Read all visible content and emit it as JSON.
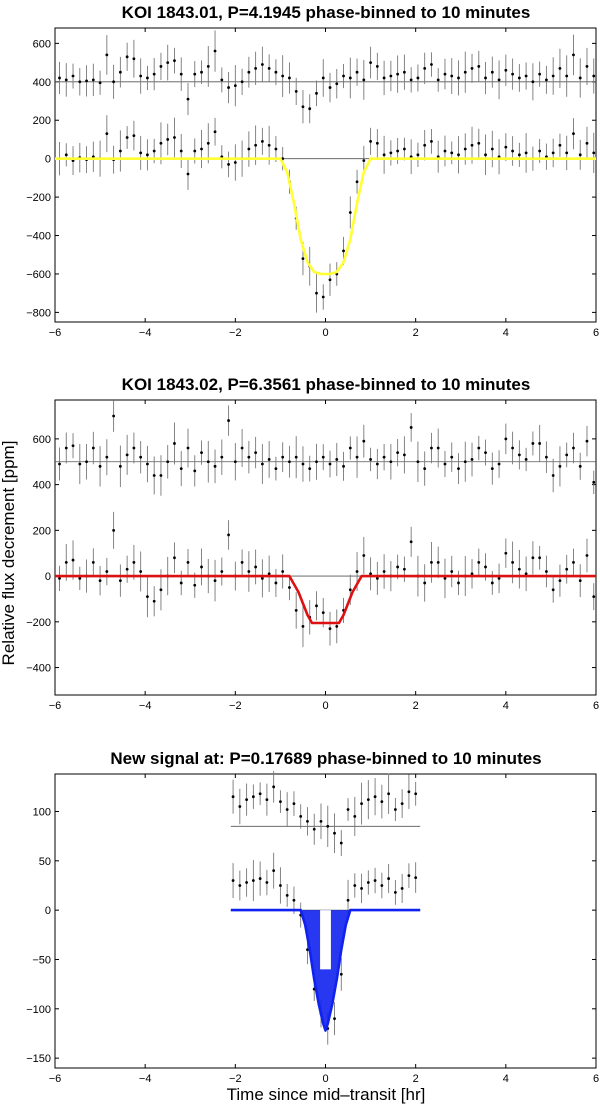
{
  "chart_data": [
    {
      "type": "scatter",
      "title": "KOI 1843.01, P=4.1945 phase-binned to 10 minutes",
      "xlabel": "",
      "ylabel": "",
      "xlim": [
        -6,
        6
      ],
      "ylim": [
        -850,
        680
      ],
      "xticks": [
        -6,
        -4,
        -2,
        0,
        2,
        4,
        6
      ],
      "yticks": [
        -800,
        -600,
        -400,
        -200,
        0,
        200,
        400,
        600
      ],
      "reference_lines": [
        0,
        400
      ],
      "model_color": "#ffff33",
      "model": {
        "x": [
          -6,
          -1.0,
          -0.85,
          -0.7,
          -0.55,
          -0.4,
          -0.25,
          -0.1,
          0,
          0.1,
          0.25,
          0.4,
          0.55,
          0.7,
          0.85,
          1.0,
          6
        ],
        "y": [
          0,
          0,
          -70,
          -230,
          -420,
          -540,
          -590,
          -600,
          -600,
          -600,
          -590,
          -540,
          -420,
          -230,
          -70,
          0,
          0
        ]
      },
      "series": [
        {
          "x": [
            -5.9,
            -5.75,
            -5.6,
            -5.45,
            -5.3,
            -5.15,
            -5.0,
            -4.85,
            -4.7,
            -4.55,
            -4.4,
            -4.25,
            -4.1,
            -3.95,
            -3.8,
            -3.65,
            -3.5,
            -3.35,
            -3.2,
            -3.05,
            -2.9,
            -2.75,
            -2.6,
            -2.45,
            -2.3,
            -2.15,
            -2.0,
            -1.85,
            -1.7,
            -1.55,
            -1.4,
            -1.25,
            -1.1,
            -0.95,
            -0.8,
            -0.65,
            -0.5,
            -0.35,
            -0.2,
            -0.05,
            0.1,
            0.25,
            0.4,
            0.55,
            0.7,
            0.85,
            1.0,
            1.15,
            1.3,
            1.45,
            1.6,
            1.75,
            1.9,
            2.05,
            2.2,
            2.35,
            2.5,
            2.65,
            2.8,
            2.95,
            3.1,
            3.25,
            3.4,
            3.55,
            3.7,
            3.85,
            4.0,
            4.15,
            4.3,
            4.45,
            4.6,
            4.75,
            4.9,
            5.05,
            5.2,
            5.35,
            5.5,
            5.65,
            5.8,
            5.95
          ],
          "y": [
            420,
            410,
            430,
            400,
            405,
            410,
            395,
            540,
            400,
            450,
            530,
            520,
            430,
            420,
            440,
            480,
            500,
            510,
            440,
            310,
            440,
            450,
            480,
            560,
            410,
            370,
            380,
            400,
            450,
            470,
            490,
            470,
            450,
            430,
            420,
            350,
            270,
            260,
            340,
            420,
            370,
            390,
            430,
            420,
            450,
            410,
            500,
            480,
            420,
            430,
            440,
            450,
            410,
            420,
            470,
            490,
            410,
            440,
            430,
            420,
            450,
            470,
            480,
            420,
            450,
            410,
            460,
            440,
            420,
            430,
            400,
            440,
            410,
            430,
            470,
            430,
            540,
            420,
            480,
            430
          ]
        },
        {
          "x": [
            -5.9,
            -5.75,
            -5.6,
            -5.45,
            -5.3,
            -5.15,
            -5.0,
            -4.85,
            -4.7,
            -4.55,
            -4.4,
            -4.25,
            -4.1,
            -3.95,
            -3.8,
            -3.65,
            -3.5,
            -3.35,
            -3.2,
            -3.05,
            -2.9,
            -2.75,
            -2.6,
            -2.45,
            -2.3,
            -2.15,
            -2.0,
            -1.85,
            -1.7,
            -1.55,
            -1.4,
            -1.25,
            -1.1,
            -0.95,
            -0.8,
            -0.65,
            -0.5,
            -0.35,
            -0.2,
            -0.05,
            0.1,
            0.25,
            0.4,
            0.55,
            0.7,
            0.85,
            1.0,
            1.15,
            1.3,
            1.45,
            1.6,
            1.75,
            1.9,
            2.05,
            2.2,
            2.35,
            2.5,
            2.65,
            2.8,
            2.95,
            3.1,
            3.25,
            3.4,
            3.55,
            3.7,
            3.85,
            4.0,
            4.15,
            4.3,
            4.45,
            4.6,
            4.75,
            4.9,
            5.05,
            5.2,
            5.35,
            5.5,
            5.65,
            5.8,
            5.95
          ],
          "y": [
            0,
            20,
            -10,
            5,
            -5,
            10,
            0,
            130,
            -5,
            40,
            110,
            120,
            30,
            20,
            40,
            80,
            100,
            110,
            40,
            -80,
            40,
            50,
            80,
            140,
            10,
            -30,
            -20,
            0,
            50,
            70,
            90,
            70,
            50,
            0,
            -120,
            -310,
            -520,
            -560,
            -700,
            -720,
            -630,
            -600,
            -480,
            -280,
            -120,
            -10,
            90,
            80,
            20,
            30,
            40,
            50,
            10,
            20,
            70,
            90,
            10,
            40,
            30,
            20,
            50,
            70,
            80,
            20,
            50,
            10,
            60,
            40,
            20,
            30,
            0,
            40,
            10,
            30,
            70,
            30,
            130,
            20,
            80,
            30
          ]
        }
      ]
    },
    {
      "type": "scatter",
      "title": "KOI 1843.02, P=6.3561 phase-binned to 10 minutes",
      "xlabel": "",
      "ylabel": "Relative flux decrement [ppm]",
      "xlim": [
        -6,
        6
      ],
      "ylim": [
        -520,
        770
      ],
      "xticks": [
        -6,
        -4,
        -2,
        0,
        2,
        4,
        6
      ],
      "yticks": [
        -400,
        -200,
        0,
        200,
        400,
        600
      ],
      "reference_lines": [
        0,
        500
      ],
      "model_color": "#dd1111",
      "model": {
        "x": [
          -6,
          -0.8,
          -0.6,
          -0.4,
          -0.3,
          0.3,
          0.4,
          0.6,
          0.8,
          6
        ],
        "y": [
          0,
          0,
          -70,
          -170,
          -205,
          -205,
          -170,
          -70,
          0,
          0
        ]
      },
      "series": [
        {
          "x": [
            -5.9,
            -5.75,
            -5.6,
            -5.45,
            -5.3,
            -5.15,
            -5.0,
            -4.85,
            -4.7,
            -4.55,
            -4.4,
            -4.25,
            -4.1,
            -3.95,
            -3.8,
            -3.65,
            -3.5,
            -3.35,
            -3.2,
            -3.05,
            -2.9,
            -2.75,
            -2.6,
            -2.45,
            -2.3,
            -2.15,
            -2.0,
            -1.85,
            -1.7,
            -1.55,
            -1.4,
            -1.25,
            -1.1,
            -0.95,
            -0.8,
            -0.65,
            -0.5,
            -0.35,
            -0.2,
            -0.05,
            0.1,
            0.25,
            0.4,
            0.55,
            0.7,
            0.85,
            1.0,
            1.15,
            1.3,
            1.45,
            1.6,
            1.75,
            1.9,
            2.05,
            2.2,
            2.35,
            2.5,
            2.65,
            2.8,
            2.95,
            3.1,
            3.25,
            3.4,
            3.55,
            3.7,
            3.85,
            4.0,
            4.15,
            4.3,
            4.45,
            4.6,
            4.75,
            4.9,
            5.05,
            5.2,
            5.35,
            5.5,
            5.65,
            5.8,
            5.95
          ],
          "y": [
            490,
            560,
            570,
            490,
            500,
            560,
            480,
            520,
            700,
            480,
            530,
            560,
            520,
            490,
            440,
            440,
            500,
            580,
            470,
            560,
            460,
            540,
            500,
            480,
            520,
            680,
            500,
            560,
            520,
            540,
            490,
            510,
            470,
            520,
            500,
            520,
            490,
            470,
            500,
            520,
            490,
            510,
            480,
            560,
            520,
            590,
            510,
            490,
            520,
            500,
            540,
            530,
            650,
            500,
            470,
            560,
            560,
            490,
            520,
            470,
            500,
            510,
            560,
            540,
            470,
            490,
            600,
            560,
            530,
            510,
            580,
            580,
            520,
            440,
            480,
            530,
            560,
            480,
            590,
            410
          ]
        },
        {
          "x": [
            -5.9,
            -5.75,
            -5.6,
            -5.45,
            -5.3,
            -5.15,
            -5.0,
            -4.85,
            -4.7,
            -4.55,
            -4.4,
            -4.25,
            -4.1,
            -3.95,
            -3.8,
            -3.65,
            -3.5,
            -3.35,
            -3.2,
            -3.05,
            -2.9,
            -2.75,
            -2.6,
            -2.45,
            -2.3,
            -2.15,
            -2.0,
            -1.85,
            -1.7,
            -1.55,
            -1.4,
            -1.25,
            -1.1,
            -0.95,
            -0.8,
            -0.65,
            -0.5,
            -0.35,
            -0.2,
            -0.05,
            0.1,
            0.25,
            0.4,
            0.55,
            0.7,
            0.85,
            1.0,
            1.15,
            1.3,
            1.45,
            1.6,
            1.75,
            1.9,
            2.05,
            2.2,
            2.35,
            2.5,
            2.65,
            2.8,
            2.95,
            3.1,
            3.25,
            3.4,
            3.55,
            3.7,
            3.85,
            4.0,
            4.15,
            4.3,
            4.45,
            4.6,
            4.75,
            4.9,
            5.05,
            5.2,
            5.35,
            5.5,
            5.65,
            5.8,
            5.95
          ],
          "y": [
            -10,
            60,
            70,
            -10,
            0,
            60,
            -20,
            20,
            200,
            -20,
            30,
            60,
            20,
            -90,
            -110,
            -60,
            0,
            80,
            -30,
            60,
            -40,
            40,
            0,
            -20,
            20,
            180,
            0,
            60,
            20,
            40,
            -10,
            10,
            -30,
            20,
            -50,
            -150,
            -220,
            -180,
            -130,
            -160,
            -230,
            -220,
            -150,
            -60,
            20,
            90,
            10,
            -10,
            20,
            0,
            40,
            30,
            150,
            0,
            -30,
            60,
            60,
            -10,
            20,
            -30,
            0,
            10,
            60,
            40,
            -30,
            -10,
            100,
            60,
            30,
            10,
            80,
            80,
            20,
            -60,
            -20,
            30,
            60,
            -20,
            90,
            -90
          ]
        }
      ]
    },
    {
      "type": "scatter",
      "title": "New signal at: P=0.17689 phase-binned to 10 minutes",
      "xlabel": "Time since mid–transit [hr]",
      "ylabel": "",
      "xlim": [
        -6,
        6
      ],
      "ylim": [
        -160,
        138
      ],
      "xticks": [
        -6,
        -4,
        -2,
        0,
        2,
        4,
        6
      ],
      "yticks": [
        -150,
        -100,
        -50,
        0,
        50,
        100
      ],
      "reference_lines": [
        0,
        85
      ],
      "reference_span": [
        -2.1,
        2.1
      ],
      "model_color": "#1122ee",
      "model": {
        "x": [
          -2.1,
          -0.55,
          -0.45,
          -0.35,
          -0.25,
          -0.15,
          -0.05,
          0,
          0.05,
          0.15,
          0.25,
          0.35,
          0.45,
          0.55,
          2.1
        ],
        "y": [
          0,
          0,
          -15,
          -40,
          -70,
          -95,
          -115,
          -122,
          -115,
          -95,
          -70,
          -40,
          -15,
          0,
          0
        ]
      },
      "series": [
        {
          "x": [
            -2.05,
            -1.9,
            -1.75,
            -1.6,
            -1.45,
            -1.3,
            -1.15,
            -1.0,
            -0.85,
            -0.7,
            -0.55,
            -0.4,
            -0.25,
            -0.1,
            0.05,
            0.2,
            0.35,
            0.5,
            0.65,
            0.8,
            0.95,
            1.1,
            1.25,
            1.4,
            1.55,
            1.7,
            1.85,
            2.0
          ],
          "y": [
            115,
            105,
            112,
            115,
            118,
            112,
            125,
            110,
            102,
            108,
            95,
            90,
            82,
            90,
            85,
            78,
            68,
            102,
            95,
            108,
            112,
            115,
            110,
            118,
            102,
            108,
            120,
            118
          ]
        },
        {
          "x": [
            -2.05,
            -1.9,
            -1.75,
            -1.6,
            -1.45,
            -1.3,
            -1.15,
            -1.0,
            -0.85,
            -0.7,
            -0.55,
            -0.4,
            -0.25,
            -0.1,
            0.05,
            0.2,
            0.35,
            0.5,
            0.65,
            0.8,
            0.95,
            1.1,
            1.25,
            1.4,
            1.55,
            1.7,
            1.85,
            2.0
          ],
          "y": [
            30,
            25,
            28,
            30,
            32,
            28,
            40,
            25,
            15,
            10,
            -5,
            -40,
            -80,
            -105,
            -120,
            -110,
            -65,
            10,
            25,
            22,
            28,
            30,
            25,
            32,
            18,
            22,
            35,
            33
          ]
        }
      ]
    }
  ]
}
